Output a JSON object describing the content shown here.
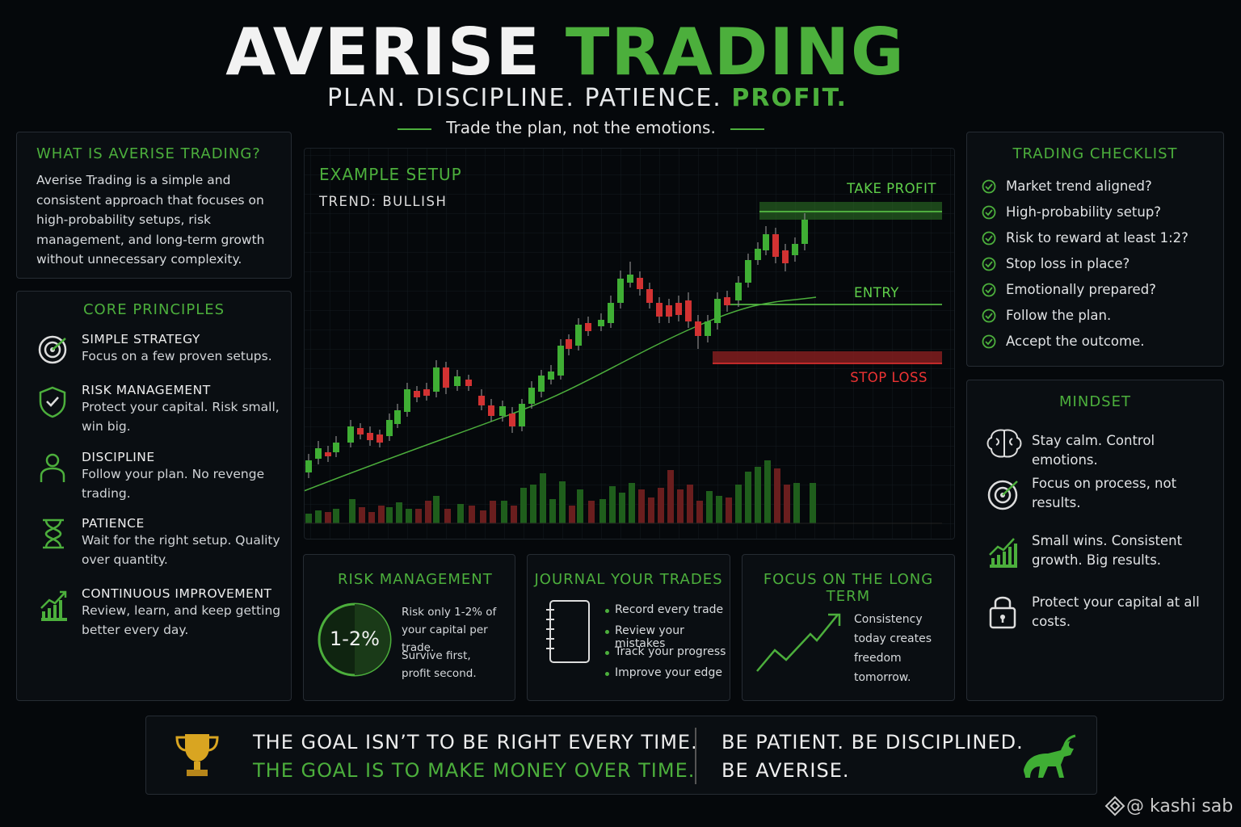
{
  "header": {
    "title_main": "AVERISE",
    "title_accent": "TRADING",
    "tagline": "PLAN. DISCIPLINE. PATIENCE.",
    "tagline_accent": "PROFIT.",
    "motto": "Trade the plan, not the emotions."
  },
  "what_is": {
    "title": "WHAT IS AVERISE TRADING?",
    "text": "Averise Trading is a simple and consistent approach that focuses on high-probability setups, risk management, and long-term growth without unnecessary complexity."
  },
  "principles": {
    "title": "CORE PRINCIPLES",
    "items": [
      {
        "name": "SIMPLE STRATEGY",
        "text": "Focus on a few proven setups."
      },
      {
        "name": "RISK MANAGEMENT",
        "text": "Protect your capital. Risk small, win big."
      },
      {
        "name": "DISCIPLINE",
        "text": "Follow your plan. No revenge trading."
      },
      {
        "name": "PATIENCE",
        "text": "Wait for the right setup. Quality over quantity."
      },
      {
        "name": "CONTINUOUS IMPROVEMENT",
        "text": "Review, learn, and keep getting better every day."
      }
    ]
  },
  "setup": {
    "title": "EXAMPLE SETUP",
    "trend": "TREND: BULLISH",
    "take_profit": "TAKE PROFIT",
    "entry": "ENTRY",
    "stop_loss": "STOP LOSS"
  },
  "checklist": {
    "title": "TRADING CHECKLIST",
    "items": [
      "Market trend aligned?",
      "High-probability setup?",
      "Risk to reward at least 1:2?",
      "Stop loss in place?",
      "Emotionally prepared?",
      "Follow the plan.",
      "Accept the outcome."
    ]
  },
  "mindset": {
    "title": "MINDSET",
    "items": [
      "Stay calm. Control emotions.",
      "Focus on process, not results.",
      "Small wins. Consistent growth. Big results.",
      "Protect your capital at all costs."
    ]
  },
  "risk": {
    "title": "RISK MANAGEMENT",
    "badge": "1-2%",
    "text": "Risk only 1-2% of your capital per trade.",
    "note": "Survive first, profit second."
  },
  "journal": {
    "title": "JOURNAL YOUR TRADES",
    "items": [
      "Record every trade",
      "Review your mistakes",
      "Track your progress",
      "Improve your edge"
    ]
  },
  "long_term": {
    "title": "FOCUS ON THE LONG TERM",
    "text": "Consistency today creates freedom tomorrow."
  },
  "footer": {
    "line1": "THE GOAL ISN’T TO BE RIGHT EVERY TIME.",
    "line2": "THE GOAL IS TO MAKE MONEY OVER TIME.",
    "line3": "BE PATIENT. BE DISCIPLINED.",
    "line4": "BE AVERISE."
  },
  "watermark": "@ kashi sab"
}
